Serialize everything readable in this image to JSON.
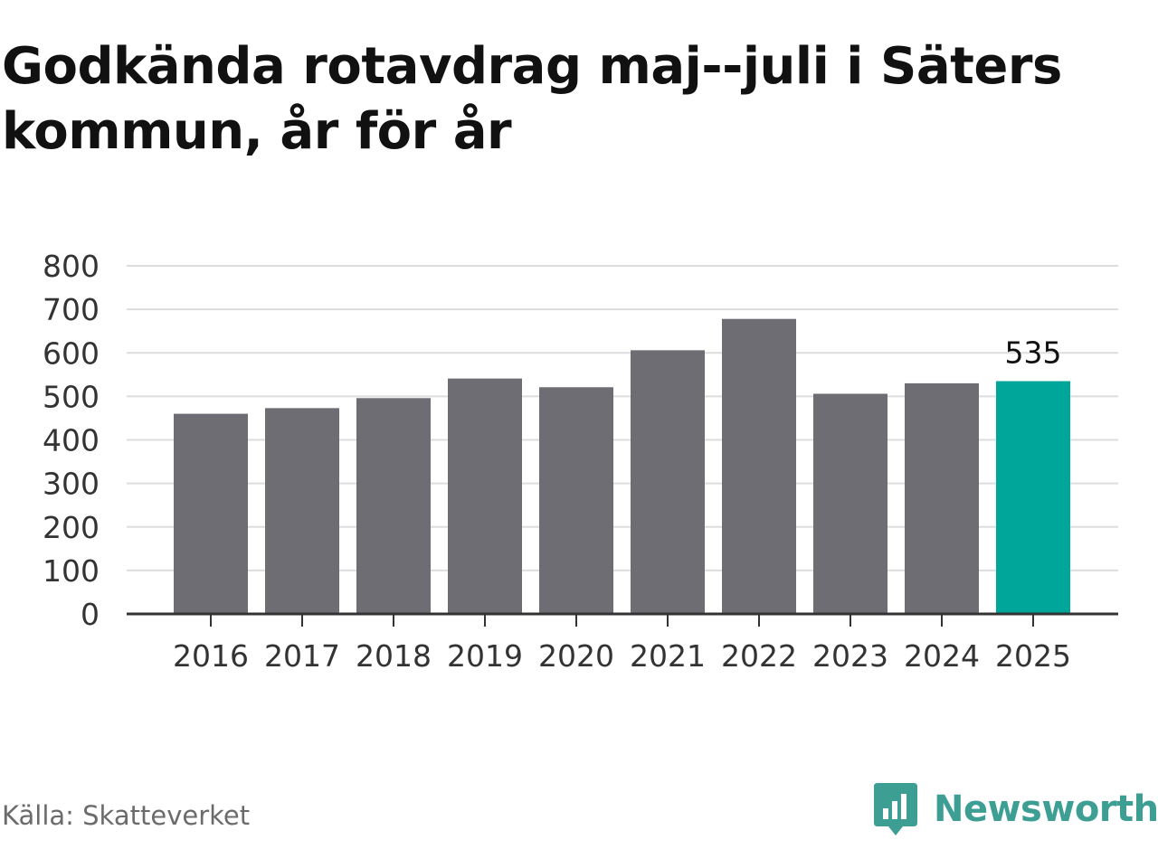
{
  "chart_data": {
    "type": "bar",
    "title": "Godkända rotavdrag maj--juli i Säters kommun, år för år",
    "categories": [
      "2016",
      "2017",
      "2018",
      "2019",
      "2020",
      "2021",
      "2022",
      "2023",
      "2024",
      "2025"
    ],
    "values": [
      460,
      473,
      496,
      541,
      521,
      606,
      678,
      506,
      530,
      535
    ],
    "highlight_index": 9,
    "highlight_label": "535",
    "xlabel": "",
    "ylabel": "",
    "ylim": [
      0,
      800
    ],
    "yticks": [
      "0",
      "100",
      "200",
      "300",
      "400",
      "500",
      "600",
      "700",
      "800"
    ],
    "grid": true,
    "colors": {
      "bar": "#6e6d74",
      "highlight": "#00a69a",
      "grid": "#dddddd",
      "axis": "#333333"
    }
  },
  "footer": {
    "source": "Källa: Skatteverket",
    "brand": "Newsworthy",
    "brand_icon": "bar-chart-speech-bubble-icon",
    "brand_color": "#3d9e94"
  }
}
